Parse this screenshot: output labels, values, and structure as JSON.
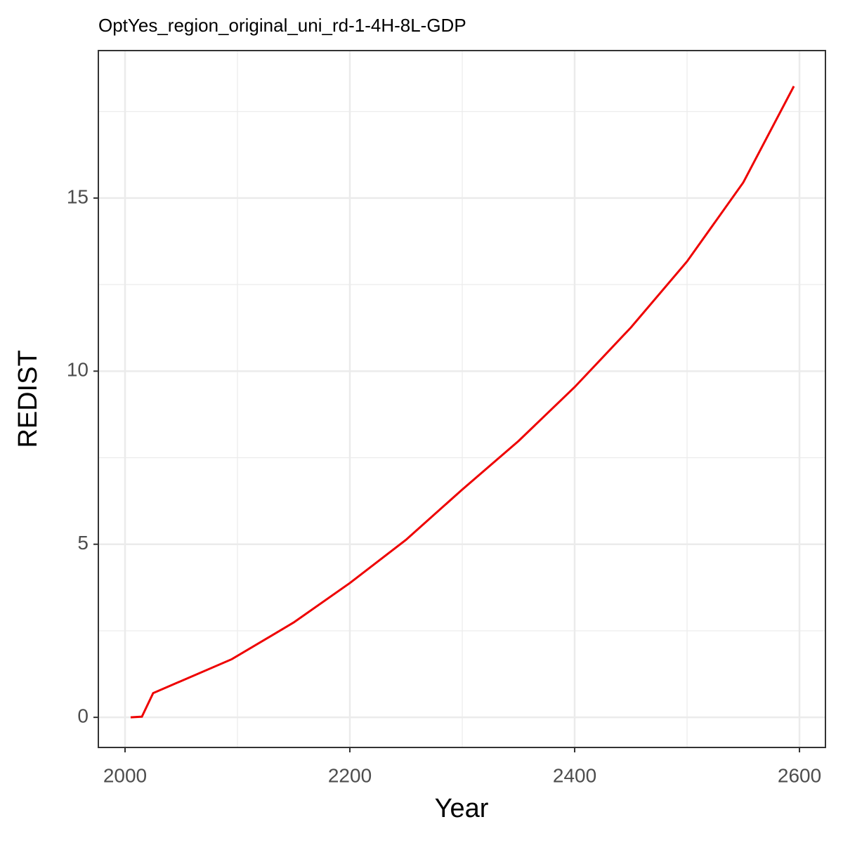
{
  "chart_data": {
    "type": "line",
    "title": "OptYes_region_original_uni_rd-1-4H-8L-GDP",
    "x_label": "Year",
    "y_label": "REDIST",
    "x": [
      2005,
      2015,
      2025,
      2095,
      2150,
      2200,
      2250,
      2300,
      2350,
      2400,
      2450,
      2500,
      2550,
      2595
    ],
    "series": [
      {
        "name": "REDIST",
        "color": "#ee0000",
        "values": [
          0,
          0.02,
          0.7,
          1.68,
          2.74,
          3.88,
          5.13,
          6.58,
          7.98,
          9.54,
          11.26,
          13.17,
          15.45,
          18.23
        ]
      }
    ],
    "xlim": [
      1976.25,
      2623.1
    ],
    "ylim": [
      -0.87,
      19.26
    ],
    "xticks": [
      2000,
      2200,
      2400,
      2600
    ],
    "yticks": [
      0,
      5,
      10,
      15
    ],
    "x_minor_grid": [
      2100,
      2300,
      2500
    ],
    "y_minor_grid": [
      2.5,
      7.5,
      12.5,
      17.5
    ],
    "grid": true
  }
}
